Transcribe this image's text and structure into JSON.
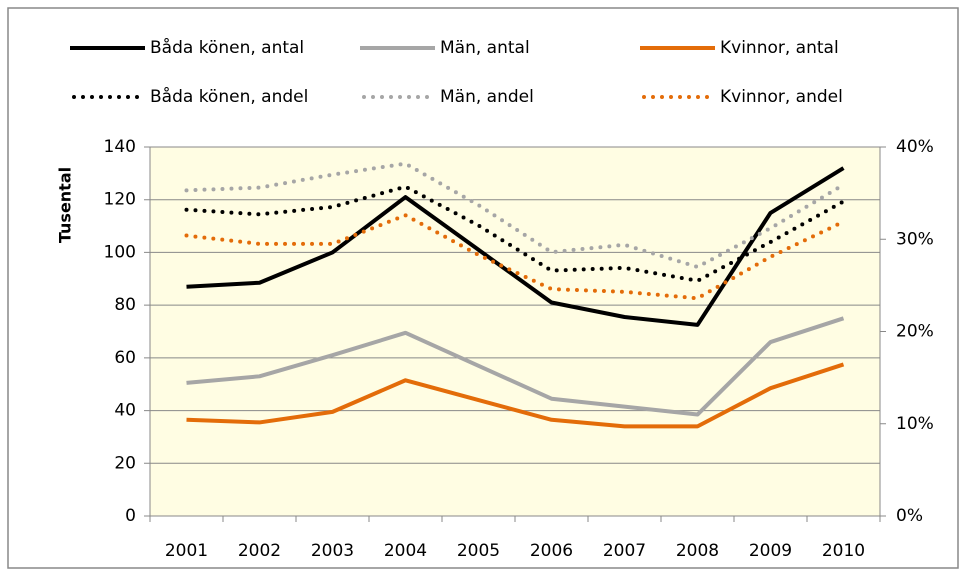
{
  "chart_data": {
    "type": "line",
    "y_label": "Tusental",
    "categories": [
      "2001",
      "2002",
      "2003",
      "2004",
      "2005",
      "2006",
      "2007",
      "2008",
      "2009",
      "2010"
    ],
    "ylim": [
      0,
      140
    ],
    "yticks": [
      0,
      20,
      40,
      60,
      80,
      100,
      120,
      140
    ],
    "y2lim": [
      0,
      40
    ],
    "y2ticks": [
      {
        "value": 0,
        "label": "0%"
      },
      {
        "value": 10,
        "label": "10%"
      },
      {
        "value": 20,
        "label": "20%"
      },
      {
        "value": 30,
        "label": "30%"
      },
      {
        "value": 40,
        "label": "40%"
      }
    ],
    "grid": true,
    "series": [
      {
        "name": "Båda könen, antal",
        "color": "#000000",
        "style": "solid",
        "values": [
          87,
          88.5,
          100,
          121,
          101,
          81,
          75.5,
          72.5,
          115,
          132
        ]
      },
      {
        "name": "Män, antal",
        "color": "#a6a6a6",
        "style": "solid",
        "values": [
          50.5,
          53,
          61,
          69.5,
          57,
          44.5,
          41.5,
          38.5,
          66,
          75
        ]
      },
      {
        "name": "Kvinnor, antal",
        "color": "#e36c09",
        "style": "solid",
        "values": [
          36.5,
          35.5,
          39.5,
          51.5,
          44,
          36.5,
          34,
          34,
          48.5,
          57.5
        ]
      },
      {
        "name": "Båda könen, andel",
        "color": "#000000",
        "style": "dotted",
        "axis": "y2",
        "values": [
          33.2,
          32.7,
          33.5,
          35.7,
          31.5,
          26.6,
          26.9,
          25.5,
          29.7,
          34.1
        ]
      },
      {
        "name": "Män, andel",
        "color": "#a6a6a6",
        "style": "dotted",
        "axis": "y2",
        "values": [
          35.3,
          35.6,
          37,
          38.2,
          33.7,
          28.6,
          29.4,
          27,
          31.2,
          35.9
        ]
      },
      {
        "name": "Kvinnor, andel",
        "color": "#e36c09",
        "style": "dotted",
        "axis": "y2",
        "values": [
          30.4,
          29.5,
          29.5,
          32.6,
          28.3,
          24.6,
          24.3,
          23.6,
          28.1,
          31.9
        ]
      }
    ]
  }
}
